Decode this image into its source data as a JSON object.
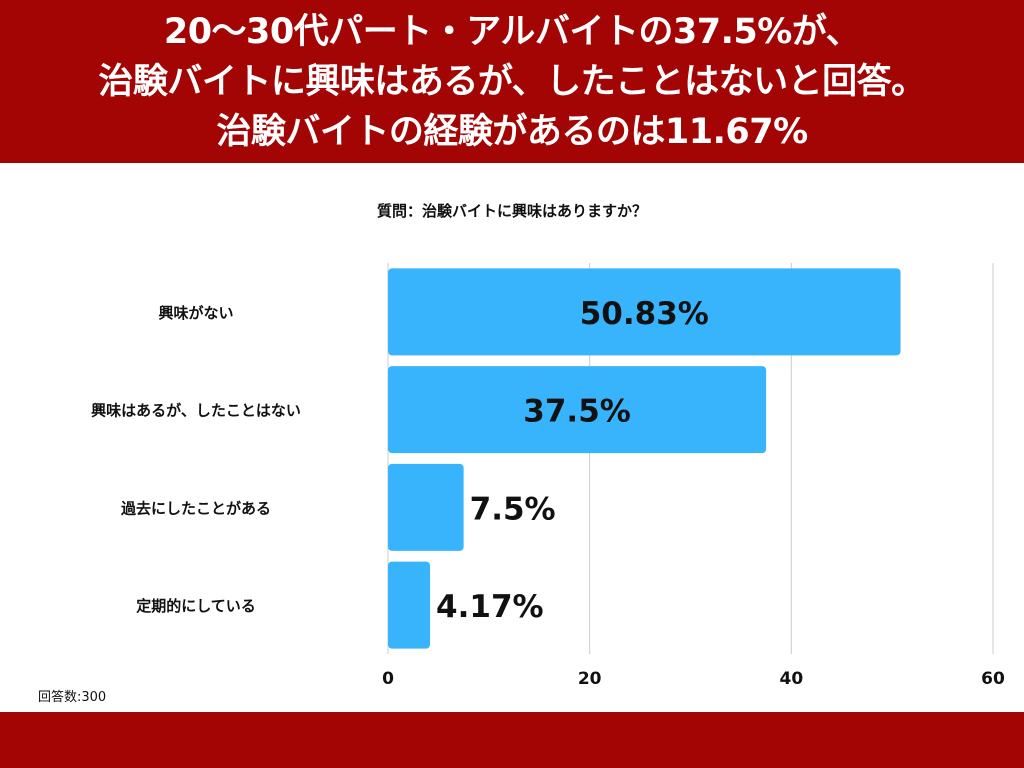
{
  "header": {
    "lines": [
      "20〜30代パート・アルバイトの37.5%が、",
      "治験バイトに興味はあるが、したことはないと回答。",
      "治験バイトの経験があるのは11.67%"
    ]
  },
  "subtitle": "質問：治験バイトに興味はありますか？",
  "respondents": "回答数:300",
  "colors": {
    "banner": "#a30505",
    "bar": "#38b4fc",
    "grid": "#cccccc"
  },
  "chart_data": {
    "type": "bar",
    "orientation": "horizontal",
    "title": "質問：治験バイトに興味はありますか？",
    "categories": [
      "興味がない",
      "興味はあるが、したことはない",
      "過去にしたことがある",
      "定期的にしている"
    ],
    "values": [
      50.83,
      37.5,
      7.5,
      4.17
    ],
    "value_labels": [
      "50.83%",
      "37.5%",
      "7.5%",
      "4.17%"
    ],
    "xlim": [
      0,
      60
    ],
    "xticks": [
      0,
      20,
      40,
      60
    ],
    "xticklabels": [
      "0",
      "20",
      "40",
      "60"
    ],
    "grid": true,
    "legend": "none"
  }
}
